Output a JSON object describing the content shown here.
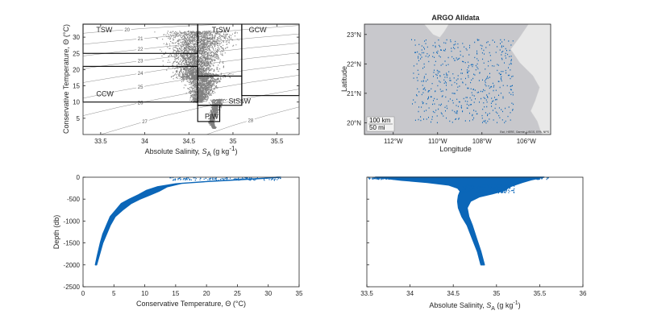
{
  "chart_data": [
    {
      "type": "scatter",
      "panel": "ts-diagram",
      "xlabel": "Absolute Salinity, S_A (g kg-1)",
      "xlabel_parts": {
        "base": "Absolute Salinity, ",
        "var": "S",
        "sub": "A",
        "unit_pre": " (g kg",
        "sup": "-1",
        "unit_post": ")"
      },
      "ylabel": "Conservative Temperature, Θ (°C)",
      "xlim": [
        33.3,
        35.75
      ],
      "ylim": [
        0,
        34
      ],
      "xticks": [
        33.5,
        34,
        34.5,
        35,
        35.5
      ],
      "xtick_labels": [
        "33.5",
        "34",
        "34.5",
        "35",
        "35.5"
      ],
      "yticks": [
        5,
        10,
        15,
        20,
        25,
        30
      ],
      "ytick_labels": [
        "5",
        "10",
        "15",
        "20",
        "25",
        "30"
      ],
      "density_contours": [
        {
          "label": "20",
          "points": [
            [
              33.3,
              31.2
            ],
            [
              33.6,
              31.9
            ],
            [
              34.0,
              32.7
            ],
            [
              34.5,
              33.5
            ],
            [
              34.9,
              34.0
            ]
          ]
        },
        {
          "label": "21",
          "points": [
            [
              33.3,
              27.8
            ],
            [
              33.7,
              28.9
            ],
            [
              34.2,
              30.1
            ],
            [
              34.7,
              31.3
            ],
            [
              35.2,
              32.5
            ],
            [
              35.75,
              33.6
            ]
          ]
        },
        {
          "label": "22",
          "points": [
            [
              33.3,
              24.2
            ],
            [
              33.7,
              25.5
            ],
            [
              34.2,
              27.0
            ],
            [
              34.7,
              28.4
            ],
            [
              35.2,
              29.7
            ],
            [
              35.75,
              31.0
            ]
          ]
        },
        {
          "label": "23",
          "points": [
            [
              33.3,
              20.3
            ],
            [
              33.7,
              21.8
            ],
            [
              34.2,
              23.6
            ],
            [
              34.7,
              25.2
            ],
            [
              35.2,
              26.7
            ],
            [
              35.75,
              28.2
            ]
          ]
        },
        {
          "label": "24",
          "points": [
            [
              33.3,
              16.0
            ],
            [
              33.7,
              17.8
            ],
            [
              34.2,
              19.9
            ],
            [
              34.7,
              21.8
            ],
            [
              35.2,
              23.5
            ],
            [
              35.75,
              25.2
            ]
          ]
        },
        {
          "label": "25",
          "points": [
            [
              33.3,
              11.2
            ],
            [
              33.7,
              13.4
            ],
            [
              34.2,
              15.8
            ],
            [
              34.7,
              18.0
            ],
            [
              35.2,
              20.0
            ],
            [
              35.75,
              21.9
            ]
          ]
        },
        {
          "label": "26",
          "points": [
            [
              33.3,
              5.8
            ],
            [
              33.7,
              8.4
            ],
            [
              34.2,
              11.2
            ],
            [
              34.7,
              13.8
            ],
            [
              35.2,
              16.1
            ],
            [
              35.75,
              18.3
            ]
          ]
        },
        {
          "label": "27",
          "points": [
            [
              33.5,
              0.0
            ],
            [
              33.8,
              2.4
            ],
            [
              34.2,
              5.6
            ],
            [
              34.7,
              8.7
            ],
            [
              35.2,
              11.4
            ],
            [
              35.75,
              14.0
            ]
          ]
        },
        {
          "label": "28",
          "points": [
            [
              34.7,
              0.0
            ],
            [
              35.0,
              2.8
            ],
            [
              35.4,
              6.0
            ],
            [
              35.75,
              8.5
            ]
          ]
        }
      ],
      "water_masses": [
        {
          "name": "TSW",
          "salinity": [
            33.3,
            34.6
          ],
          "temperature": [
            25,
            34
          ]
        },
        {
          "name": "TrSW",
          "salinity": [
            34.6,
            35.1
          ],
          "temperature": [
            18,
            34
          ]
        },
        {
          "name": "GCW",
          "salinity": [
            35.1,
            35.75
          ],
          "temperature": [
            12,
            34
          ]
        },
        {
          "name": "CCW",
          "salinity": [
            33.3,
            34.6
          ],
          "temperature": [
            10,
            21
          ]
        },
        {
          "name": "StSsW",
          "salinity": [
            34.6,
            35.1
          ],
          "temperature": [
            9,
            18
          ]
        },
        {
          "name": "PIW",
          "salinity": [
            34.6,
            34.85
          ],
          "temperature": [
            4,
            9
          ]
        }
      ],
      "point_color": "#808080"
    },
    {
      "type": "scatter",
      "panel": "map",
      "title": "ARGO Alldata",
      "xlabel": "Longitude",
      "ylabel": "Latitude",
      "xlim": [
        -113.3,
        -104.9
      ],
      "ylim": [
        19.6,
        23.35
      ],
      "xticks": [
        -112,
        -110,
        -108,
        -106
      ],
      "xtick_labels": [
        "112°W",
        "110°W",
        "108°W",
        "106°W"
      ],
      "yticks": [
        20,
        21,
        22,
        23
      ],
      "ytick_labels": [
        "20°N",
        "21°N",
        "22°N",
        "23°N"
      ],
      "scalebar_labels": [
        "100 km",
        "50 mi"
      ],
      "attribution": "Esri, HERE, Garmin, USGS, EPA, NPS",
      "float_region": {
        "lon": [
          -111.2,
          -106.6
        ],
        "lat": [
          20.0,
          22.85
        ]
      },
      "point_color": "#0b66b8",
      "ocean_color": "#c8c8cc",
      "land_color": "#e8e8e8"
    },
    {
      "type": "scatter",
      "panel": "temperature-profile",
      "xlabel": "Conservative Temperature,  Θ (°C)",
      "ylabel": "Depth (db)",
      "xlim": [
        0,
        35
      ],
      "ylim": [
        -2500,
        0
      ],
      "xticks": [
        0,
        5,
        10,
        15,
        20,
        25,
        30,
        35
      ],
      "xtick_labels": [
        "0",
        "5",
        "10",
        "15",
        "20",
        "25",
        "30",
        "35"
      ],
      "yticks": [
        0,
        -500,
        -1000,
        -1500,
        -2000,
        -2500
      ],
      "ytick_labels": [
        "0",
        "-500",
        "-1000",
        "-1500",
        "-2000",
        "-2500"
      ],
      "profile_left": [
        [
          2.0,
          -2000
        ],
        [
          2.3,
          -1800
        ],
        [
          2.8,
          -1500
        ],
        [
          3.2,
          -1300
        ],
        [
          3.8,
          -1100
        ],
        [
          4.4,
          -900
        ],
        [
          5.3,
          -750
        ],
        [
          6.2,
          -600
        ],
        [
          7.5,
          -500
        ],
        [
          9.0,
          -400
        ],
        [
          10.3,
          -300
        ],
        [
          12.0,
          -220
        ],
        [
          15.0,
          -150
        ],
        [
          20.0,
          -100
        ],
        [
          25.0,
          -60
        ],
        [
          29.0,
          -30
        ],
        [
          31.5,
          0
        ]
      ],
      "profile_right": [
        [
          2.2,
          -2000
        ],
        [
          2.6,
          -1800
        ],
        [
          3.2,
          -1500
        ],
        [
          3.8,
          -1300
        ],
        [
          4.4,
          -1100
        ],
        [
          5.2,
          -900
        ],
        [
          6.4,
          -750
        ],
        [
          7.8,
          -600
        ],
        [
          9.2,
          -500
        ],
        [
          10.6,
          -420
        ],
        [
          12.3,
          -320
        ],
        [
          13.6,
          -220
        ],
        [
          16.0,
          -140
        ],
        [
          21.0,
          -90
        ],
        [
          26.0,
          -50
        ],
        [
          30.0,
          -20
        ],
        [
          32.0,
          0
        ]
      ],
      "point_color": "#0b66b8"
    },
    {
      "type": "scatter",
      "panel": "salinity-profile",
      "xlabel": "Absolute Salinity, S_A (g kg-1)",
      "xlabel_parts": {
        "base": "Absolute Salinity, ",
        "var": "S",
        "sub": "A",
        "unit_pre": " (g kg",
        "sup": "-1",
        "unit_post": ")"
      },
      "ylabel": "",
      "xlim": [
        33.5,
        36
      ],
      "ylim": [
        -2500,
        0
      ],
      "xticks": [
        33.5,
        34,
        34.5,
        35,
        35.5,
        36
      ],
      "xtick_labels": [
        "33.5",
        "34",
        "34.5",
        "35",
        "35.5",
        "36"
      ],
      "yticks": [
        0,
        -500,
        -1000,
        -1500,
        -2000,
        -2500
      ],
      "profile_left": [
        [
          34.82,
          -2000
        ],
        [
          34.78,
          -1700
        ],
        [
          34.72,
          -1400
        ],
        [
          34.66,
          -1100
        ],
        [
          34.6,
          -900
        ],
        [
          34.56,
          -700
        ],
        [
          34.55,
          -550
        ],
        [
          34.56,
          -420
        ],
        [
          34.58,
          -320
        ],
        [
          34.55,
          -250
        ],
        [
          34.45,
          -180
        ],
        [
          34.2,
          -120
        ],
        [
          33.9,
          -70
        ],
        [
          33.6,
          0
        ]
      ],
      "profile_right": [
        [
          34.86,
          -2000
        ],
        [
          34.82,
          -1700
        ],
        [
          34.77,
          -1400
        ],
        [
          34.72,
          -1100
        ],
        [
          34.68,
          -900
        ],
        [
          34.66,
          -700
        ],
        [
          34.7,
          -550
        ],
        [
          34.8,
          -450
        ],
        [
          34.95,
          -380
        ],
        [
          35.1,
          -300
        ],
        [
          35.15,
          -220
        ],
        [
          35.3,
          -120
        ],
        [
          35.4,
          -60
        ],
        [
          35.55,
          0
        ]
      ],
      "point_color": "#0b66b8"
    }
  ]
}
